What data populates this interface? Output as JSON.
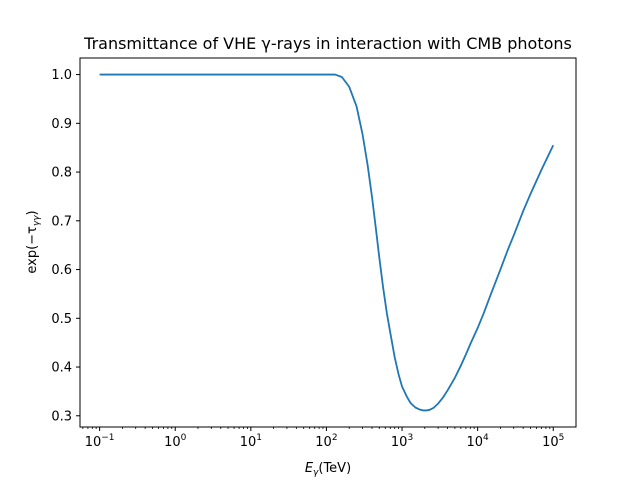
{
  "chart_data": {
    "type": "line",
    "title": "Transmittance of VHE γ-rays in interaction with CMB photons",
    "xlabel": {
      "base": "E",
      "sub": "γ",
      "unit": "(TeV)"
    },
    "ylabel": {
      "prefix": "exp(−τ",
      "sub": "γγ",
      "suffix": ")"
    },
    "xscale": "log",
    "xlim": [
      0.055,
      200000
    ],
    "ylim": [
      0.277,
      1.034
    ],
    "grid": false,
    "xticks": [
      {
        "value": 0.1,
        "base": "10",
        "exp": "−1"
      },
      {
        "value": 1,
        "base": "10",
        "exp": "0"
      },
      {
        "value": 10,
        "base": "10",
        "exp": "1"
      },
      {
        "value": 100,
        "base": "10",
        "exp": "2"
      },
      {
        "value": 1000,
        "base": "10",
        "exp": "3"
      },
      {
        "value": 10000,
        "base": "10",
        "exp": "4"
      },
      {
        "value": 100000,
        "base": "10",
        "exp": "5"
      }
    ],
    "yticks": [
      "0.3",
      "0.4",
      "0.5",
      "0.6",
      "0.7",
      "0.8",
      "0.9",
      "1.0"
    ],
    "series": [
      {
        "color": "#1f77b4",
        "x": [
          0.1,
          1,
          10,
          100,
          130,
          160,
          200,
          250,
          300,
          350,
          400,
          450,
          500,
          560,
          630,
          700,
          800,
          900,
          1000,
          1150,
          1300,
          1500,
          1700,
          1900,
          2100,
          2300,
          2600,
          3000,
          3500,
          4000,
          5000,
          6000,
          7000,
          8000,
          10000,
          12000,
          15000,
          20000,
          25000,
          30000,
          40000,
          50000,
          70000,
          100000
        ],
        "y": [
          1.0,
          1.0,
          1.0,
          1.0,
          1.0,
          0.995,
          0.975,
          0.935,
          0.878,
          0.815,
          0.75,
          0.685,
          0.625,
          0.565,
          0.51,
          0.47,
          0.42,
          0.385,
          0.36,
          0.34,
          0.326,
          0.317,
          0.313,
          0.311,
          0.311,
          0.312,
          0.316,
          0.325,
          0.338,
          0.352,
          0.378,
          0.403,
          0.426,
          0.447,
          0.48,
          0.51,
          0.55,
          0.6,
          0.64,
          0.67,
          0.72,
          0.755,
          0.805,
          0.855
        ]
      }
    ]
  }
}
